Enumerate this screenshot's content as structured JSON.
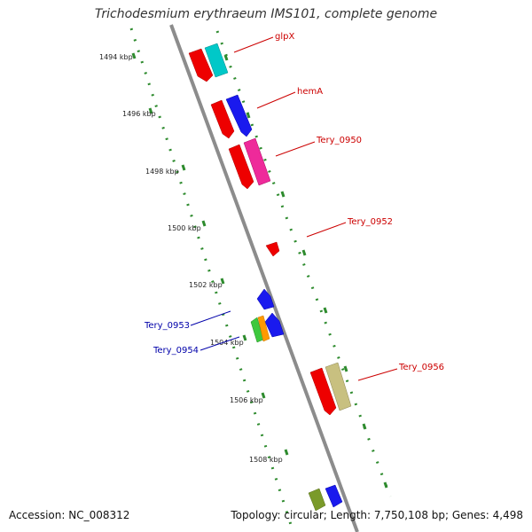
{
  "title": "Trichodesmium erythraeum IMS101, complete genome",
  "accession": "Accession: NC_008312",
  "topology": "Topology: circular; Length: 7,750,108 bp; Genes: 4,498",
  "colors": {
    "backbone": "#8c8c8c",
    "tick_dots": "#2e8b2e",
    "label_forward": "#cc0000",
    "label_reverse": "#0000aa"
  },
  "kbp_labels": [
    "1494 kbp",
    "1496 kbp",
    "1498 kbp",
    "1500 kbp",
    "1502 kbp",
    "1504 kbp",
    "1506 kbp",
    "1508 kbp"
  ],
  "genes": [
    {
      "name": "glpX",
      "strand": "forward",
      "label_color": "#cc0000"
    },
    {
      "name": "hemA",
      "strand": "forward",
      "label_color": "#cc0000"
    },
    {
      "name": "Tery_0950",
      "strand": "forward",
      "label_color": "#cc0000"
    },
    {
      "name": "Tery_0952",
      "strand": "forward",
      "label_color": "#cc0000"
    },
    {
      "name": "Tery_0953",
      "strand": "reverse",
      "label_color": "#0000aa"
    },
    {
      "name": "Tery_0954",
      "strand": "reverse",
      "label_color": "#0000aa"
    },
    {
      "name": "Tery_0956",
      "strand": "forward",
      "label_color": "#cc0000"
    }
  ],
  "gene_block_colors": [
    "#ee0000",
    "#00c8c8",
    "#1a1aee",
    "#ee2a9a",
    "#3ec83e",
    "#ff9a00",
    "#c8c080",
    "#7a9a2a"
  ]
}
